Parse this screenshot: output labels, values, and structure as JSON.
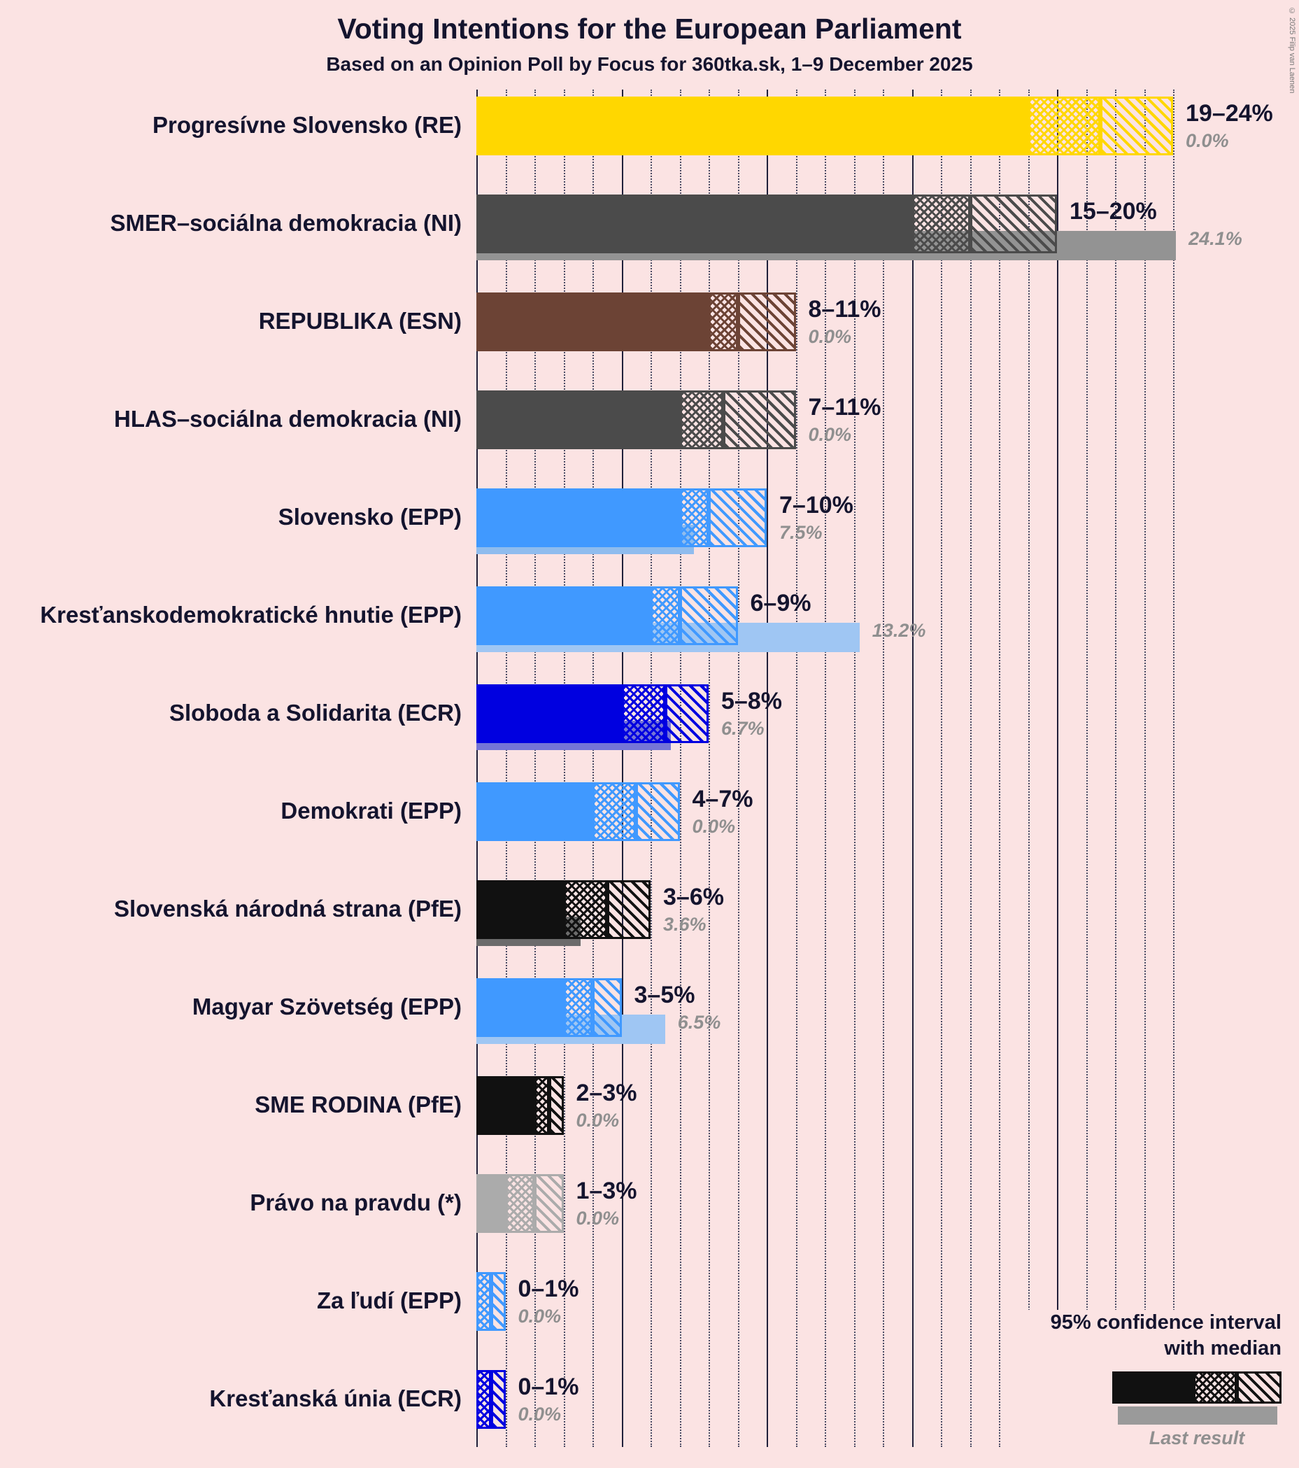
{
  "title": "Voting Intentions for the European Parliament",
  "subtitle": "Based on an Opinion Poll by Focus for 360tka.sk, 1–9 December 2025",
  "copyright": "© 2025 Filip van Laenen",
  "legend": {
    "ci_line1": "95% confidence interval",
    "ci_line2": "with median",
    "last_result": "Last result"
  },
  "chart_data": {
    "type": "bar",
    "orientation": "horizontal",
    "unit": "%",
    "x_axis": {
      "min": 0,
      "max": 24,
      "major_tick_step": 5,
      "minor_tick_step": 1,
      "gridlines": true,
      "tick_labels_shown": false
    },
    "note": "Bars show 95% confidence interval (solid to low bound, crosshatch low-to-median, diagonal hatch median-to-high); thin bar underneath is last result.",
    "parties": [
      {
        "label": "Progresívne Slovensko (RE)",
        "low": 19,
        "median": 21.5,
        "high": 24,
        "last": 0.0,
        "range_label": "19–24%",
        "last_label": "0.0%",
        "color": "#ffd700",
        "last_color": "#d9c06e"
      },
      {
        "label": "SMER–sociálna demokracia (NI)",
        "low": 15,
        "median": 17,
        "high": 20,
        "last": 24.1,
        "range_label": "15–20%",
        "last_label": "24.1%",
        "color": "#4b4b4b",
        "last_color": "#939393"
      },
      {
        "label": "REPUBLIKA (ESN)",
        "low": 8,
        "median": 9,
        "high": 11,
        "last": 0.0,
        "range_label": "8–11%",
        "last_label": "0.0%",
        "color": "#6c4335",
        "last_color": "#a58a80"
      },
      {
        "label": "HLAS–sociálna demokracia (NI)",
        "low": 7,
        "median": 8.5,
        "high": 11,
        "last": 0.0,
        "range_label": "7–11%",
        "last_label": "0.0%",
        "color": "#4b4b4b",
        "last_color": "#939393"
      },
      {
        "label": "Slovensko (EPP)",
        "low": 7,
        "median": 8,
        "high": 10,
        "last": 7.5,
        "range_label": "7–10%",
        "last_label": "7.5%",
        "color": "#4099ff",
        "last_color": "#8fbcee"
      },
      {
        "label": "Kresťanskodemokratické hnutie (EPP)",
        "low": 6,
        "median": 7,
        "high": 9,
        "last": 13.2,
        "range_label": "6–9%",
        "last_label": "13.2%",
        "color": "#4099ff",
        "last_color": "#9fc6f3"
      },
      {
        "label": "Sloboda a Solidarita (ECR)",
        "low": 5,
        "median": 6.5,
        "high": 8,
        "last": 6.7,
        "range_label": "5–8%",
        "last_label": "6.7%",
        "color": "#0000e0",
        "last_color": "#7575d6"
      },
      {
        "label": "Demokrati (EPP)",
        "low": 4,
        "median": 5.5,
        "high": 7,
        "last": 0.0,
        "range_label": "4–7%",
        "last_label": "0.0%",
        "color": "#4099ff",
        "last_color": "#9fc6f3"
      },
      {
        "label": "Slovenská národná strana (PfE)",
        "low": 3,
        "median": 4.5,
        "high": 6,
        "last": 3.6,
        "range_label": "3–6%",
        "last_label": "3.6%",
        "color": "#111111",
        "last_color": "#6b6b6b"
      },
      {
        "label": "Magyar Szövetség (EPP)",
        "low": 3,
        "median": 4,
        "high": 5,
        "last": 6.5,
        "range_label": "3–5%",
        "last_label": "6.5%",
        "color": "#4099ff",
        "last_color": "#9fc6f3"
      },
      {
        "label": "SME RODINA (PfE)",
        "low": 2,
        "median": 2.5,
        "high": 3,
        "last": 0.0,
        "range_label": "2–3%",
        "last_label": "0.0%",
        "color": "#111111",
        "last_color": "#6b6b6b"
      },
      {
        "label": "Právo na pravdu (*)",
        "low": 1,
        "median": 2,
        "high": 3,
        "last": 0.0,
        "range_label": "1–3%",
        "last_label": "0.0%",
        "color": "#ababab",
        "last_color": "#c8c0c0"
      },
      {
        "label": "Za ľudí (EPP)",
        "low": 0,
        "median": 0.5,
        "high": 1,
        "last": 0.0,
        "range_label": "0–1%",
        "last_label": "0.0%",
        "color": "#4099ff",
        "last_color": "#9fc6f3"
      },
      {
        "label": "Kresťanská únia (ECR)",
        "low": 0,
        "median": 0.5,
        "high": 1,
        "last": 0.0,
        "range_label": "0–1%",
        "last_label": "0.0%",
        "color": "#0000e0",
        "last_color": "#7575d6"
      }
    ]
  }
}
